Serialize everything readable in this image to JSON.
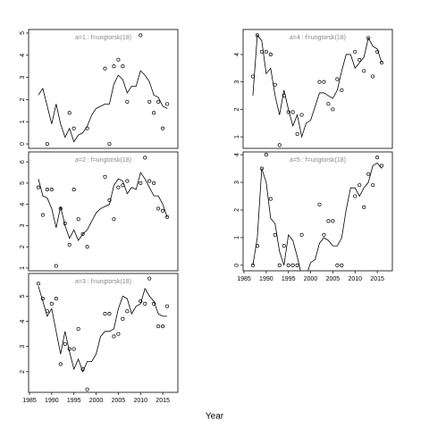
{
  "xlabel": "Year",
  "chart_data": [
    {
      "type": "line",
      "title": "a=1 : f=ungtorsk(18)",
      "x": [
        1987,
        1988,
        1989,
        1990,
        1991,
        1992,
        1993,
        1994,
        1995,
        1996,
        1997,
        1998,
        1999,
        2000,
        2001,
        2002,
        2003,
        2004,
        2005,
        2006,
        2007,
        2008,
        2009,
        2010,
        2011,
        2012,
        2013,
        2014,
        2015,
        2016
      ],
      "xlim": [
        1984.8,
        2018.4
      ],
      "ylim": [
        -0.2,
        5.16
      ],
      "yticks": [
        0,
        1,
        2,
        3,
        4,
        5
      ],
      "series": [
        {
          "type": "line",
          "color": "#000000",
          "values": [
            2.2,
            2.5,
            1.7,
            0.9,
            1.8,
            0.9,
            0.3,
            0.7,
            0.1,
            0.4,
            0.5,
            0.8,
            1.3,
            1.6,
            1.7,
            1.8,
            1.8,
            2.7,
            3.1,
            2.9,
            2.3,
            2.6,
            2.6,
            3.3,
            3.1,
            2.8,
            2.2,
            2.1,
            1.7,
            1.6
          ]
        },
        {
          "type": "scatter",
          "color": "#000000",
          "values": [
            null,
            null,
            0,
            null,
            null,
            null,
            null,
            1.4,
            0.7,
            null,
            null,
            0.7,
            null,
            null,
            null,
            3.4,
            0,
            3.5,
            3.8,
            3.5,
            1.9,
            null,
            null,
            4.9,
            null,
            1.9,
            1.4,
            1.9,
            0.7,
            1.8
          ]
        }
      ]
    },
    {
      "type": "line",
      "title": "a=2 : f=ungtorsk(18)",
      "x": [
        1987,
        1988,
        1989,
        1990,
        1991,
        1992,
        1993,
        1994,
        1995,
        1996,
        1997,
        1998,
        1999,
        2000,
        2001,
        2002,
        2003,
        2004,
        2005,
        2006,
        2007,
        2008,
        2009,
        2010,
        2011,
        2012,
        2013,
        2014,
        2015,
        2016
      ],
      "xlim": [
        1984.8,
        2018.4
      ],
      "ylim": [
        0.87,
        6.47
      ],
      "yticks": [
        1,
        2,
        3,
        4,
        5,
        6
      ],
      "series": [
        {
          "type": "line",
          "color": "#000000",
          "values": [
            5.2,
            4.4,
            4.3,
            3.8,
            2.9,
            3.9,
            3.0,
            2.4,
            2.8,
            2.3,
            2.6,
            2.8,
            3.2,
            3.6,
            3.8,
            3.9,
            4.0,
            4.9,
            5.2,
            5.1,
            4.5,
            4.8,
            4.7,
            5.5,
            5.2,
            4.8,
            4.4,
            4.4,
            4.0,
            3.4
          ]
        },
        {
          "type": "scatter",
          "color": "#000000",
          "values": [
            4.8,
            3.5,
            4.7,
            4.7,
            1.1,
            3.8,
            3.1,
            2.1,
            4.7,
            3.3,
            2.6,
            2.0,
            null,
            null,
            null,
            5.3,
            4.2,
            3.3,
            4.8,
            4.9,
            5.1,
            null,
            null,
            5.0,
            6.2,
            5.1,
            5.0,
            3.8,
            3.7,
            3.4
          ]
        }
      ]
    },
    {
      "type": "line",
      "title": "a=3 : f=ungtorsk(18)",
      "x": [
        1987,
        1988,
        1989,
        1990,
        1991,
        1992,
        1993,
        1994,
        1995,
        1996,
        1997,
        1998,
        1999,
        2000,
        2001,
        2002,
        2003,
        2004,
        2005,
        2006,
        2007,
        2008,
        2009,
        2010,
        2011,
        2012,
        2013,
        2014,
        2015,
        2016
      ],
      "xlim": [
        1984.8,
        2018.4
      ],
      "xticks": [
        1985,
        1990,
        1995,
        2000,
        2005,
        2010,
        2015
      ],
      "ylim": [
        1.18,
        5.9
      ],
      "yticks": [
        2,
        3,
        4,
        5
      ],
      "series": [
        {
          "type": "line",
          "color": "#000000",
          "values": [
            5.4,
            4.8,
            4.2,
            4.5,
            3.6,
            2.7,
            3.6,
            2.8,
            2.1,
            2.5,
            2.0,
            2.4,
            2.4,
            2.7,
            3.4,
            3.6,
            3.6,
            3.7,
            4.5,
            5.0,
            4.9,
            4.3,
            4.6,
            4.7,
            5.3,
            5.0,
            4.8,
            4.3,
            4.2,
            4.2
          ]
        },
        {
          "type": "scatter",
          "color": "#000000",
          "values": [
            5.5,
            4.9,
            4.4,
            4.7,
            4.9,
            2.3,
            3.1,
            2.9,
            2.9,
            3.7,
            2.1,
            1.3,
            null,
            null,
            null,
            4.3,
            4.3,
            3.4,
            3.5,
            4.1,
            4.4,
            null,
            null,
            4.8,
            4.7,
            5.7,
            4.7,
            3.8,
            3.8,
            4.6
          ]
        }
      ]
    },
    {
      "type": "line",
      "title": "a=4 : f=ungtorsk(18)",
      "x": [
        1987,
        1988,
        1989,
        1990,
        1991,
        1992,
        1993,
        1994,
        1995,
        1996,
        1997,
        1998,
        1999,
        2000,
        2001,
        2002,
        2003,
        2004,
        2005,
        2006,
        2007,
        2008,
        2009,
        2010,
        2011,
        2012,
        2013,
        2014,
        2015,
        2016
      ],
      "xlim": [
        1984.8,
        2018.4
      ],
      "ylim": [
        0.58,
        4.91
      ],
      "yticks": [
        1,
        2,
        3,
        4
      ],
      "series": [
        {
          "type": "line",
          "color": "#000000",
          "values": [
            2.5,
            4.7,
            4.5,
            3.3,
            3.5,
            2.5,
            1.8,
            2.7,
            2.0,
            1.4,
            1.8,
            1.0,
            1.5,
            1.6,
            2.1,
            2.6,
            2.6,
            2.5,
            2.4,
            2.7,
            3.4,
            4.0,
            4.0,
            3.5,
            3.7,
            3.9,
            4.6,
            4.3,
            4.2,
            3.7
          ]
        },
        {
          "type": "scatter",
          "color": "#000000",
          "values": [
            3.2,
            4.7,
            4.1,
            4.1,
            4.0,
            2.9,
            0.7,
            2.5,
            1.9,
            1.9,
            1.1,
            1.8,
            null,
            null,
            null,
            3.0,
            3.0,
            2.2,
            2.0,
            3.1,
            2.7,
            null,
            null,
            4.1,
            3.8,
            3.4,
            4.6,
            3.2,
            4.1,
            3.7
          ]
        }
      ]
    },
    {
      "type": "line",
      "title": "a=5 : f=ungtorsk(18)",
      "x": [
        1987,
        1988,
        1989,
        1990,
        1991,
        1992,
        1993,
        1994,
        1995,
        1996,
        1997,
        1998,
        1999,
        2000,
        2001,
        2002,
        2003,
        2004,
        2005,
        2006,
        2007,
        2008,
        2009,
        2010,
        2011,
        2012,
        2013,
        2014,
        2015,
        2016
      ],
      "xlim": [
        1984.8,
        2018.4
      ],
      "xticks": [
        1985,
        1990,
        1995,
        2000,
        2005,
        2010,
        2015
      ],
      "ylim": [
        -0.2,
        4.1
      ],
      "yticks": [
        0,
        1,
        2,
        3,
        4
      ],
      "series": [
        {
          "type": "line",
          "color": "#000000",
          "values": [
            0,
            1.0,
            3.5,
            3.0,
            1.7,
            1.5,
            0.5,
            0,
            1.1,
            0.9,
            0.3,
            -0.4,
            -0.4,
            0.1,
            0.2,
            0.8,
            1.0,
            0.9,
            0.7,
            0.7,
            1.0,
            2.0,
            2.8,
            2.8,
            2.5,
            2.8,
            3.0,
            3.6,
            3.7,
            3.5
          ]
        },
        {
          "type": "scatter",
          "color": "#000000",
          "values": [
            0,
            0.7,
            3.5,
            4.0,
            2.4,
            1.1,
            0,
            0.7,
            0,
            0,
            0,
            1.1,
            null,
            null,
            null,
            2.2,
            1.1,
            1.6,
            1.6,
            0,
            0,
            null,
            null,
            2.5,
            2.9,
            2.1,
            3.3,
            2.9,
            3.9,
            3.6
          ]
        }
      ]
    }
  ]
}
